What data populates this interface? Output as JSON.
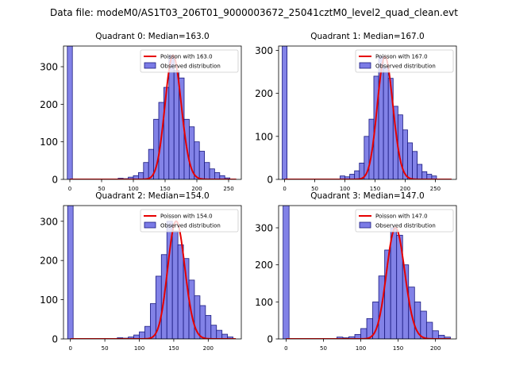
{
  "suptitle": "Data file: modeM0/AS1T03_206T01_9000003672_25041cztM0_level2_quad_clean.evt",
  "colors": {
    "bar_fill": "#7b7be6",
    "bar_edge": "#1a1a80",
    "curve": "#e60000"
  },
  "chart_data": [
    {
      "type": "bar",
      "title": "Quadrant 0: Median=163.0",
      "median": 163.0,
      "bin_width": 8,
      "xlim": [
        -10,
        270
      ],
      "ylim": [
        0,
        355
      ],
      "xticks": [
        0,
        50,
        100,
        150,
        200,
        250
      ],
      "yticks": [
        0,
        100,
        200,
        300
      ],
      "legend": [
        "Poisson with 163.0",
        "Observed distribution"
      ],
      "legend_position": "top-right",
      "bins": [
        {
          "x": 0,
          "count": 355
        },
        {
          "x": 80,
          "count": 3
        },
        {
          "x": 88,
          "count": 2
        },
        {
          "x": 96,
          "count": 6
        },
        {
          "x": 104,
          "count": 10
        },
        {
          "x": 112,
          "count": 18
        },
        {
          "x": 120,
          "count": 45
        },
        {
          "x": 128,
          "count": 80
        },
        {
          "x": 136,
          "count": 160
        },
        {
          "x": 144,
          "count": 205
        },
        {
          "x": 152,
          "count": 245
        },
        {
          "x": 160,
          "count": 330
        },
        {
          "x": 168,
          "count": 290
        },
        {
          "x": 176,
          "count": 270
        },
        {
          "x": 184,
          "count": 160
        },
        {
          "x": 192,
          "count": 140
        },
        {
          "x": 200,
          "count": 100
        },
        {
          "x": 208,
          "count": 75
        },
        {
          "x": 216,
          "count": 45
        },
        {
          "x": 224,
          "count": 28
        },
        {
          "x": 232,
          "count": 18
        },
        {
          "x": 240,
          "count": 10
        },
        {
          "x": 248,
          "count": 4
        }
      ]
    },
    {
      "type": "bar",
      "title": "Quadrant 1: Median=167.0",
      "median": 167.0,
      "bin_width": 8,
      "xlim": [
        -10,
        285
      ],
      "ylim": [
        0,
        310
      ],
      "xticks": [
        0,
        50,
        100,
        150,
        200,
        250
      ],
      "yticks": [
        0,
        100,
        200,
        300
      ],
      "legend": [
        "Poisson with 167.0",
        "Observed distribution"
      ],
      "legend_position": "top-right",
      "bins": [
        {
          "x": 0,
          "count": 310
        },
        {
          "x": 96,
          "count": 8
        },
        {
          "x": 104,
          "count": 6
        },
        {
          "x": 112,
          "count": 12
        },
        {
          "x": 120,
          "count": 20
        },
        {
          "x": 128,
          "count": 38
        },
        {
          "x": 136,
          "count": 100
        },
        {
          "x": 144,
          "count": 140
        },
        {
          "x": 152,
          "count": 240
        },
        {
          "x": 160,
          "count": 285
        },
        {
          "x": 168,
          "count": 260
        },
        {
          "x": 176,
          "count": 235
        },
        {
          "x": 184,
          "count": 170
        },
        {
          "x": 192,
          "count": 150
        },
        {
          "x": 200,
          "count": 115
        },
        {
          "x": 208,
          "count": 85
        },
        {
          "x": 216,
          "count": 65
        },
        {
          "x": 224,
          "count": 35
        },
        {
          "x": 232,
          "count": 18
        },
        {
          "x": 240,
          "count": 12
        },
        {
          "x": 248,
          "count": 8
        }
      ]
    },
    {
      "type": "bar",
      "title": "Quadrant 2: Median=154.0",
      "median": 154.0,
      "bin_width": 8,
      "xlim": [
        -10,
        248
      ],
      "ylim": [
        0,
        340
      ],
      "xticks": [
        0,
        50,
        100,
        150,
        200
      ],
      "yticks": [
        0,
        100,
        200,
        300
      ],
      "legend": [
        "Poisson with 154.0",
        "Observed distribution"
      ],
      "legend_position": "top-right",
      "bins": [
        {
          "x": 0,
          "count": 340
        },
        {
          "x": 72,
          "count": 3
        },
        {
          "x": 80,
          "count": 2
        },
        {
          "x": 88,
          "count": 5
        },
        {
          "x": 96,
          "count": 10
        },
        {
          "x": 104,
          "count": 18
        },
        {
          "x": 112,
          "count": 32
        },
        {
          "x": 120,
          "count": 90
        },
        {
          "x": 128,
          "count": 160
        },
        {
          "x": 136,
          "count": 215
        },
        {
          "x": 144,
          "count": 300
        },
        {
          "x": 152,
          "count": 275
        },
        {
          "x": 160,
          "count": 240
        },
        {
          "x": 168,
          "count": 205
        },
        {
          "x": 176,
          "count": 150
        },
        {
          "x": 184,
          "count": 110
        },
        {
          "x": 192,
          "count": 85
        },
        {
          "x": 200,
          "count": 60
        },
        {
          "x": 208,
          "count": 35
        },
        {
          "x": 216,
          "count": 22
        },
        {
          "x": 224,
          "count": 12
        },
        {
          "x": 232,
          "count": 5
        }
      ]
    },
    {
      "type": "bar",
      "title": "Quadrant 3: Median=147.0",
      "median": 147.0,
      "bin_width": 8,
      "xlim": [
        -10,
        228
      ],
      "ylim": [
        0,
        360
      ],
      "xticks": [
        0,
        50,
        100,
        150,
        200
      ],
      "yticks": [
        0,
        100,
        200,
        300
      ],
      "legend": [
        "Poisson with 147.0",
        "Observed distribution"
      ],
      "legend_position": "top-right",
      "bins": [
        {
          "x": 0,
          "count": 360
        },
        {
          "x": 72,
          "count": 5
        },
        {
          "x": 80,
          "count": 3
        },
        {
          "x": 88,
          "count": 6
        },
        {
          "x": 96,
          "count": 12
        },
        {
          "x": 104,
          "count": 28
        },
        {
          "x": 112,
          "count": 55
        },
        {
          "x": 120,
          "count": 100
        },
        {
          "x": 128,
          "count": 170
        },
        {
          "x": 136,
          "count": 240
        },
        {
          "x": 144,
          "count": 300
        },
        {
          "x": 152,
          "count": 280
        },
        {
          "x": 160,
          "count": 200
        },
        {
          "x": 168,
          "count": 140
        },
        {
          "x": 176,
          "count": 100
        },
        {
          "x": 184,
          "count": 75
        },
        {
          "x": 192,
          "count": 45
        },
        {
          "x": 200,
          "count": 22
        },
        {
          "x": 208,
          "count": 10
        },
        {
          "x": 216,
          "count": 5
        }
      ]
    }
  ]
}
